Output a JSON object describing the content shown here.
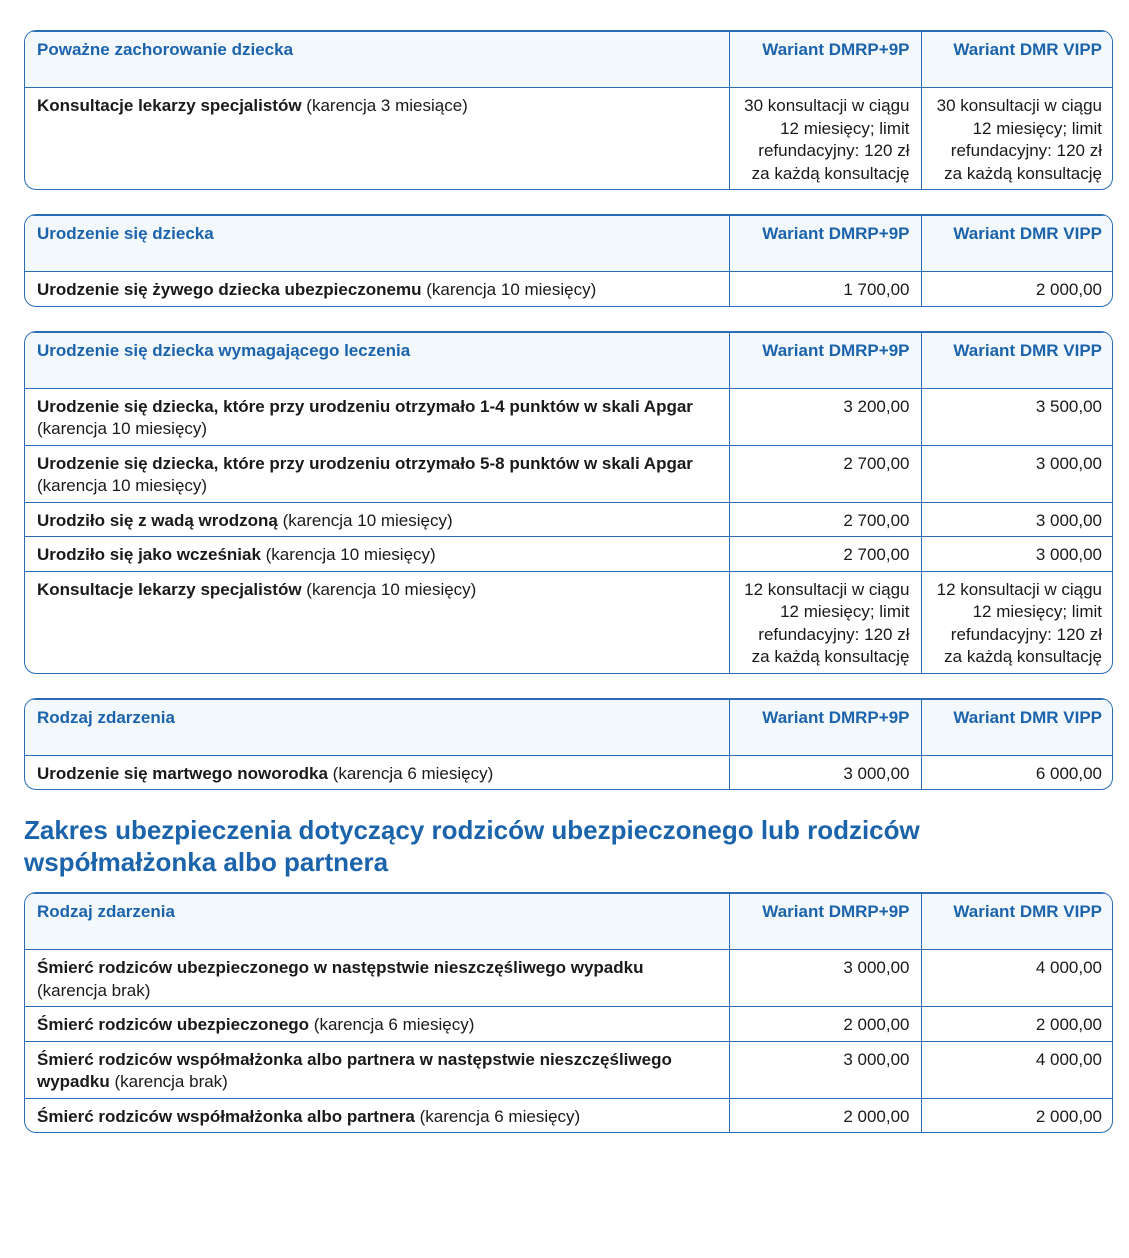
{
  "blocks": [
    {
      "type": "table",
      "header": [
        "Poważne zachorowanie dziecka",
        "Wariant DMRP+9P",
        "Wariant DMR VIPP"
      ],
      "rows": [
        {
          "bold": "Konsultacje lekarzy specjalistów",
          "rest": " (karencja 3 miesiące)",
          "v1": "30 konsultacji w ciągu 12 miesięcy; limit refundacyjny: 120 zł za każdą konsultację",
          "v2": "30 konsultacji w ciągu 12 miesięcy; limit refundacyjny: 120 zł za każdą konsultację"
        }
      ]
    },
    {
      "type": "table",
      "header": [
        "Urodzenie się dziecka",
        "Wariant DMRP+9P",
        "Wariant DMR VIPP"
      ],
      "rows": [
        {
          "bold": "Urodzenie się żywego dziecka ubezpieczonemu",
          "rest": " (karencja 10 miesięcy)",
          "v1": "1 700,00",
          "v2": "2 000,00"
        }
      ]
    },
    {
      "type": "table",
      "header": [
        "Urodzenie się dziecka wymagającego leczenia",
        "Wariant DMRP+9P",
        "Wariant DMR VIPP"
      ],
      "rows": [
        {
          "bold": "Urodzenie się dziecka, które przy urodzeniu otrzymało 1-4 punktów w skali Apgar",
          "rest": " (karencja 10 miesięcy)",
          "v1": "3 200,00",
          "v2": "3 500,00"
        },
        {
          "bold": "Urodzenie się dziecka, które przy urodzeniu otrzymało 5-8 punktów w skali Apgar",
          "rest": " (karencja 10 miesięcy)",
          "v1": "2 700,00",
          "v2": "3 000,00"
        },
        {
          "bold": "Urodziło się z wadą wrodzoną",
          "rest": " (karencja 10 miesięcy)",
          "v1": "2 700,00",
          "v2": "3 000,00"
        },
        {
          "bold": "Urodziło się jako wcześniak",
          "rest": " (karencja 10 miesięcy)",
          "v1": "2 700,00",
          "v2": "3 000,00"
        },
        {
          "bold": "Konsultacje lekarzy specjalistów",
          "rest": " (karencja 10 miesięcy)",
          "v1": "12 konsultacji w ciągu 12 miesięcy; limit refundacyjny: 120 zł za każdą konsultację",
          "v2": "12 konsultacji w ciągu 12 miesięcy; limit refundacyjny: 120 zł za każdą konsultację"
        }
      ]
    },
    {
      "type": "table",
      "header": [
        "Rodzaj zdarzenia",
        "Wariant DMRP+9P",
        "Wariant DMR VIPP"
      ],
      "rows": [
        {
          "bold": "Urodzenie się martwego noworodka",
          "rest": " (karencja 6 miesięcy)",
          "v1": "3 000,00",
          "v2": "6 000,00"
        }
      ]
    },
    {
      "type": "heading",
      "text": "Zakres ubezpieczenia dotyczący rodziców ubezpieczonego lub rodziców współmałżonka albo partnera"
    },
    {
      "type": "table",
      "header": [
        "Rodzaj zdarzenia",
        "Wariant DMRP+9P",
        "Wariant DMR VIPP"
      ],
      "rows": [
        {
          "bold": "Śmierć rodziców ubezpieczonego w następstwie nieszczęśliwego wypadku",
          "rest": " (karencja brak)",
          "v1": "3 000,00",
          "v2": "4 000,00"
        },
        {
          "bold": "Śmierć rodziców ubezpieczonego",
          "rest": " (karencja 6 miesięcy)",
          "v1": "2 000,00",
          "v2": "2 000,00"
        },
        {
          "bold": "Śmierć rodziców współmałżonka albo partnera w następstwie nieszczęśliwego wypadku",
          "rest": " (karencja brak)",
          "v1": "3 000,00",
          "v2": "4 000,00"
        },
        {
          "bold": "Śmierć rodziców współmałżonka albo partnera",
          "rest": " (karencja 6 miesięcy)",
          "v1": "2 000,00",
          "v2": "2 000,00"
        }
      ]
    }
  ]
}
